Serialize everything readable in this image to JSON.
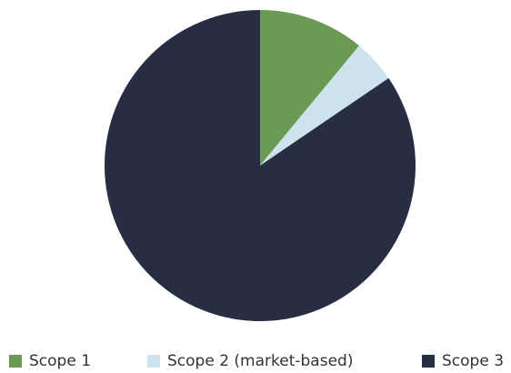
{
  "chart_data": {
    "type": "pie",
    "categories": [
      "Scope 1",
      "Scope 2 (market-based)",
      "Scope 3"
    ],
    "values": [
      11,
      4.5,
      84.5
    ],
    "colors": [
      "#6b9a52",
      "#cde3ec",
      "#272d42"
    ],
    "start_angle_deg": 0,
    "direction": "clockwise",
    "legend_position": "bottom",
    "title": ""
  }
}
